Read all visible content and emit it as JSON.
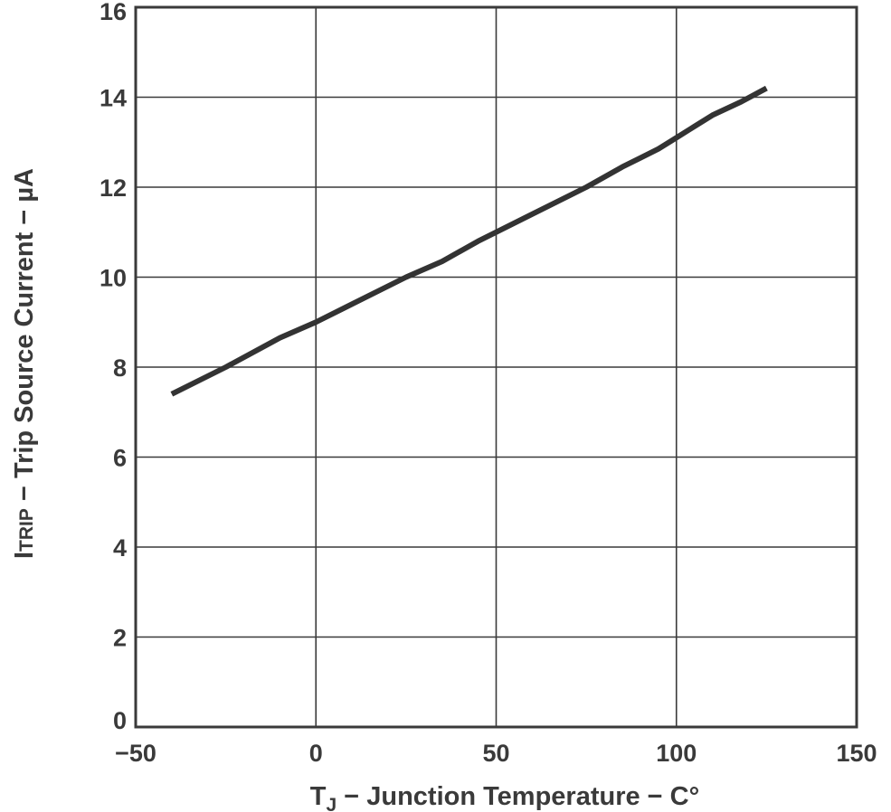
{
  "chart_data": {
    "type": "line",
    "xlabel": {
      "main": "T",
      "sub": "J",
      "rest": " − Junction Temperature − C°"
    },
    "ylabel": {
      "sub_prefix": "I",
      "sub": "TRIP",
      "rest": " − Trip Source Current − µA"
    },
    "xlim": [
      -50,
      150
    ],
    "ylim": [
      0,
      16
    ],
    "x_ticks": [
      -50,
      0,
      50,
      100,
      150
    ],
    "x_tick_labels": [
      "−50",
      "0",
      "50",
      "100",
      "150"
    ],
    "y_ticks": [
      0,
      2,
      4,
      6,
      8,
      10,
      12,
      14,
      16
    ],
    "y_tick_labels": [
      "0",
      "2",
      "4",
      "6",
      "8",
      "10",
      "12",
      "14",
      "16"
    ],
    "grid": true,
    "legend": "none",
    "series": [
      {
        "x": [
          -40,
          -25,
          -10,
          0,
          10,
          25,
          35,
          45,
          60,
          75,
          85,
          90,
          95,
          100,
          105,
          110,
          118,
          125
        ],
        "y": [
          7.4,
          8.0,
          8.65,
          9.0,
          9.4,
          10.0,
          10.35,
          10.8,
          11.4,
          12.0,
          12.45,
          12.65,
          12.85,
          13.1,
          13.35,
          13.6,
          13.9,
          14.2
        ],
        "color": "#333333"
      }
    ]
  }
}
